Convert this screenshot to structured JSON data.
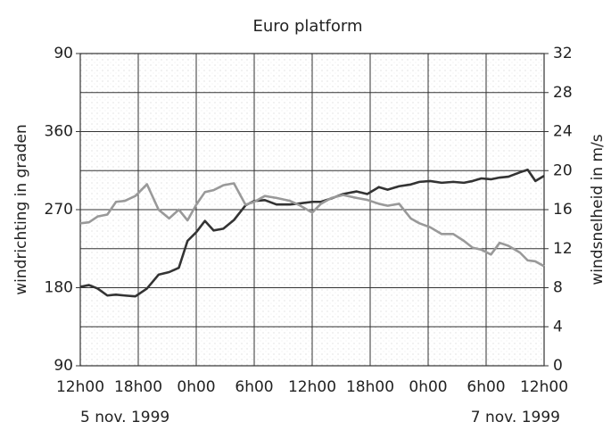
{
  "chart_data": {
    "type": "line",
    "title": "Euro platform",
    "ylabel": "windrichting in graden",
    "y2label": "windsnelheid in m/s",
    "annotations": [
      "5 nov. 1999",
      "7 nov. 1999"
    ],
    "x": [
      0,
      0.9,
      1.8,
      2.8,
      3.7,
      4.6,
      5.7,
      6.9,
      8.1,
      9.2,
      10.2,
      11.1,
      12,
      12.9,
      13.8,
      14.8,
      15.9,
      17.1,
      18,
      19.1,
      20.3,
      21.7,
      22.6,
      24,
      24.9,
      26,
      27.2,
      28.6,
      29.7,
      30.9,
      31.8,
      33,
      34.2,
      35.1,
      36.2,
      37.4,
      38.6,
      39.7,
      40.6,
      41.5,
      42.5,
      43.4,
      44.3,
      45.5,
      46.3,
      47.1,
      48
    ],
    "xlim": [
      0,
      48
    ],
    "xticks": [
      {
        "value": 0,
        "label": "12h00"
      },
      {
        "value": 6,
        "label": "18h00"
      },
      {
        "value": 12,
        "label": "0h00"
      },
      {
        "value": 18,
        "label": "6h00"
      },
      {
        "value": 24,
        "label": "12h00"
      },
      {
        "value": 30,
        "label": "18h00"
      },
      {
        "value": 36,
        "label": "0h00"
      },
      {
        "value": 42,
        "label": "6h00"
      },
      {
        "value": 48,
        "label": "12h00"
      }
    ],
    "ylim": [
      90,
      450
    ],
    "yticks": [
      90,
      180,
      270,
      360,
      {
        "value": 450,
        "label": "90"
      }
    ],
    "y2lim": [
      0,
      32
    ],
    "y2ticks": [
      0,
      4,
      8,
      12,
      16,
      20,
      24,
      28,
      32
    ],
    "grid": true,
    "series": [
      {
        "color": "#333333",
        "values": [
          181,
          183,
          179,
          171,
          172,
          171,
          170,
          179,
          195,
          198,
          203,
          234,
          244,
          257,
          246,
          248,
          258,
          275,
          280,
          281,
          276,
          276,
          277,
          279,
          279,
          283,
          288,
          291,
          288,
          296,
          293,
          297,
          299,
          302,
          303,
          301,
          302,
          301,
          303,
          306,
          305,
          307,
          308,
          313,
          316,
          303,
          309
        ]
      },
      {
        "color": "#999999",
        "axis": "y2",
        "values": [
          14.6,
          14.7,
          15.3,
          15.5,
          16.8,
          16.9,
          17.4,
          18.6,
          16.0,
          15.1,
          16.0,
          14.9,
          16.5,
          17.8,
          18.0,
          18.5,
          18.7,
          16.5,
          16.8,
          17.4,
          17.2,
          16.9,
          16.5,
          15.7,
          16.6,
          17.2,
          17.5,
          17.2,
          17.0,
          16.6,
          16.4,
          16.6,
          15.1,
          14.6,
          14.2,
          13.5,
          13.5,
          12.8,
          12.1,
          11.9,
          11.4,
          12.6,
          12.3,
          11.6,
          10.8,
          10.7,
          10.2
        ]
      }
    ]
  }
}
